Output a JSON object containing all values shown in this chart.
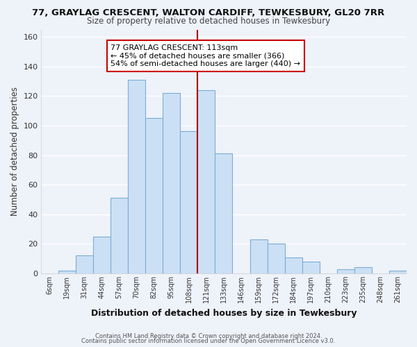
{
  "title": "77, GRAYLAG CRESCENT, WALTON CARDIFF, TEWKESBURY, GL20 7RR",
  "subtitle": "Size of property relative to detached houses in Tewkesbury",
  "xlabel": "Distribution of detached houses by size in Tewkesbury",
  "ylabel": "Number of detached properties",
  "bar_labels": [
    "6sqm",
    "19sqm",
    "31sqm",
    "44sqm",
    "57sqm",
    "70sqm",
    "82sqm",
    "95sqm",
    "108sqm",
    "121sqm",
    "133sqm",
    "146sqm",
    "159sqm",
    "172sqm",
    "184sqm",
    "197sqm",
    "210sqm",
    "223sqm",
    "235sqm",
    "248sqm",
    "261sqm"
  ],
  "bar_values": [
    0,
    2,
    12,
    25,
    51,
    131,
    105,
    122,
    96,
    124,
    81,
    0,
    23,
    20,
    11,
    8,
    0,
    3,
    4,
    0,
    2
  ],
  "bar_color": "#cce0f5",
  "bar_edge_color": "#7aadd4",
  "vline_color": "#aa0000",
  "annotation_title": "77 GRAYLAG CRESCENT: 113sqm",
  "annotation_line1": "← 45% of detached houses are smaller (366)",
  "annotation_line2": "54% of semi-detached houses are larger (440) →",
  "annotation_box_color": "#ffffff",
  "annotation_box_edge": "#cc0000",
  "ylim": [
    0,
    165
  ],
  "yticks": [
    0,
    20,
    40,
    60,
    80,
    100,
    120,
    140,
    160
  ],
  "footnote1": "Contains HM Land Registry data © Crown copyright and database right 2024.",
  "footnote2": "Contains public sector information licensed under the Open Government Licence v3.0.",
  "background_color": "#eef2f9",
  "grid_color": "#ffffff"
}
